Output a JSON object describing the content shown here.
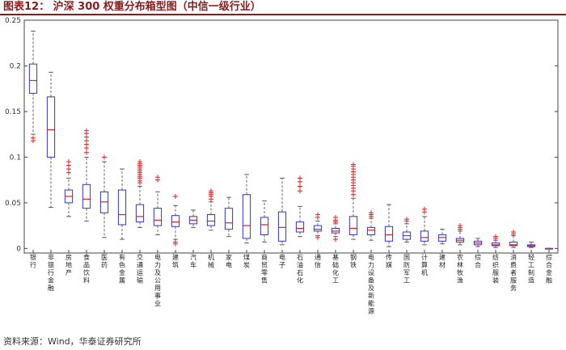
{
  "figure": {
    "title": "图表12：   沪深 300 权重分布箱型图（中信一级行业）",
    "source": "资料来源：Wind，华泰证券研究所"
  },
  "colors": {
    "box": "#3333cc",
    "median": "#e02020",
    "outlier": "#e02020",
    "whisker": "#555555",
    "title": "#8b1a1a"
  },
  "chart_data": {
    "type": "box",
    "title": "",
    "xlabel": "",
    "ylabel": "",
    "ylim": [
      -0.005,
      0.25
    ],
    "yticks": [
      0,
      0.05,
      0.1,
      0.15,
      0.2,
      0.25
    ],
    "ytick_labels": [
      "0",
      "0.05",
      "0.1",
      "0.15",
      "0.2",
      "0.25"
    ],
    "grid": false,
    "categories": [
      "银行",
      "非银行金融",
      "房地产",
      "食品饮料",
      "医药",
      "有色金属",
      "交通运输",
      "电力及公用事业",
      "建筑",
      "汽车",
      "机械",
      "家电",
      "煤炭",
      "商贸零售",
      "电子",
      "石油石化",
      "通信",
      "基础化工",
      "钢铁",
      "电力设备及新能源",
      "传媒",
      "国防军工",
      "计算机",
      "建材",
      "农林牧渔",
      "综合",
      "纺织服装",
      "消费者服务",
      "轻工制造",
      "综合金融"
    ],
    "boxes": [
      {
        "min": 0.125,
        "q1": 0.17,
        "median": 0.184,
        "q3": 0.202,
        "max": 0.238,
        "outliers": [
          0.118,
          0.121
        ]
      },
      {
        "min": 0.045,
        "q1": 0.1,
        "median": 0.13,
        "q3": 0.166,
        "max": 0.193,
        "outliers": []
      },
      {
        "min": 0.035,
        "q1": 0.05,
        "median": 0.057,
        "q3": 0.064,
        "max": 0.077,
        "outliers": [
          0.083,
          0.087,
          0.091,
          0.095
        ]
      },
      {
        "min": 0.03,
        "q1": 0.044,
        "median": 0.054,
        "q3": 0.07,
        "max": 0.1,
        "outliers": [
          0.105,
          0.11,
          0.114,
          0.118,
          0.122,
          0.126,
          0.129
        ]
      },
      {
        "min": 0.012,
        "q1": 0.039,
        "median": 0.051,
        "q3": 0.062,
        "max": 0.095,
        "outliers": [
          0.1
        ]
      },
      {
        "min": 0.01,
        "q1": 0.026,
        "median": 0.037,
        "q3": 0.064,
        "max": 0.087,
        "outliers": []
      },
      {
        "min": 0.023,
        "q1": 0.029,
        "median": 0.035,
        "q3": 0.048,
        "max": 0.068,
        "outliers": [
          0.072,
          0.074,
          0.077,
          0.079,
          0.081,
          0.083,
          0.085,
          0.087,
          0.089,
          0.091,
          0.093,
          0.095
        ]
      },
      {
        "min": 0.015,
        "q1": 0.025,
        "median": 0.031,
        "q3": 0.044,
        "max": 0.062,
        "outliers": [
          0.075,
          0.078
        ]
      },
      {
        "min": 0.01,
        "q1": 0.024,
        "median": 0.029,
        "q3": 0.036,
        "max": 0.047,
        "outliers": [
          0.005,
          0.007,
          0.057
        ]
      },
      {
        "min": 0.023,
        "q1": 0.027,
        "median": 0.031,
        "q3": 0.035,
        "max": 0.042,
        "outliers": []
      },
      {
        "min": 0.02,
        "q1": 0.025,
        "median": 0.03,
        "q3": 0.037,
        "max": 0.051,
        "outliers": [
          0.054,
          0.057,
          0.059,
          0.061,
          0.063
        ]
      },
      {
        "min": 0.013,
        "q1": 0.021,
        "median": 0.028,
        "q3": 0.044,
        "max": 0.056,
        "outliers": []
      },
      {
        "min": 0.006,
        "q1": 0.011,
        "median": 0.025,
        "q3": 0.059,
        "max": 0.081,
        "outliers": []
      },
      {
        "min": 0.007,
        "q1": 0.015,
        "median": 0.026,
        "q3": 0.034,
        "max": 0.052,
        "outliers": []
      },
      {
        "min": 0.004,
        "q1": 0.008,
        "median": 0.023,
        "q3": 0.04,
        "max": 0.077,
        "outliers": []
      },
      {
        "min": 0.013,
        "q1": 0.018,
        "median": 0.022,
        "q3": 0.029,
        "max": 0.046,
        "outliers": [
          0.063,
          0.068,
          0.073,
          0.077
        ]
      },
      {
        "min": 0.014,
        "q1": 0.019,
        "median": 0.021,
        "q3": 0.025,
        "max": 0.03,
        "outliers": [
          0.012,
          0.034,
          0.037
        ]
      },
      {
        "min": 0.013,
        "q1": 0.017,
        "median": 0.019,
        "q3": 0.022,
        "max": 0.027,
        "outliers": [
          0.01,
          0.029,
          0.031,
          0.034
        ]
      },
      {
        "min": 0.01,
        "q1": 0.015,
        "median": 0.022,
        "q3": 0.035,
        "max": 0.055,
        "outliers": [
          0.059,
          0.063,
          0.066,
          0.069,
          0.072,
          0.075,
          0.078,
          0.081,
          0.084,
          0.087,
          0.09,
          0.092
        ]
      },
      {
        "min": 0.009,
        "q1": 0.015,
        "median": 0.02,
        "q3": 0.023,
        "max": 0.033,
        "outliers": [
          0.035,
          0.037,
          0.039
        ]
      },
      {
        "min": 0.002,
        "q1": 0.008,
        "median": 0.015,
        "q3": 0.024,
        "max": 0.048,
        "outliers": []
      },
      {
        "min": 0.007,
        "q1": 0.01,
        "median": 0.014,
        "q3": 0.018,
        "max": 0.027,
        "outliers": [
          0.03,
          0.032
        ]
      },
      {
        "min": 0.004,
        "q1": 0.008,
        "median": 0.012,
        "q3": 0.019,
        "max": 0.035,
        "outliers": [
          0.04,
          0.043
        ]
      },
      {
        "min": 0.005,
        "q1": 0.008,
        "median": 0.012,
        "q3": 0.015,
        "max": 0.021,
        "outliers": []
      },
      {
        "min": 0.004,
        "q1": 0.007,
        "median": 0.009,
        "q3": 0.011,
        "max": 0.019,
        "outliers": [
          0.021,
          0.023,
          0.025
        ]
      },
      {
        "min": 0.002,
        "q1": 0.004,
        "median": 0.006,
        "q3": 0.008,
        "max": 0.011,
        "outliers": []
      },
      {
        "min": 0.001,
        "q1": 0.003,
        "median": 0.004,
        "q3": 0.006,
        "max": 0.009,
        "outliers": [
          0.011,
          0.013
        ]
      },
      {
        "min": 0.001,
        "q1": 0.003,
        "median": 0.004,
        "q3": 0.007,
        "max": 0.014,
        "outliers": [
          0.016,
          0.018
        ]
      },
      {
        "min": 0.001,
        "q1": 0.002,
        "median": 0.003,
        "q3": 0.004,
        "max": 0.007,
        "outliers": []
      },
      {
        "min": 0.0,
        "q1": 0.0,
        "median": 0.0,
        "q3": 0.0,
        "max": 0.0,
        "outliers": []
      }
    ]
  }
}
